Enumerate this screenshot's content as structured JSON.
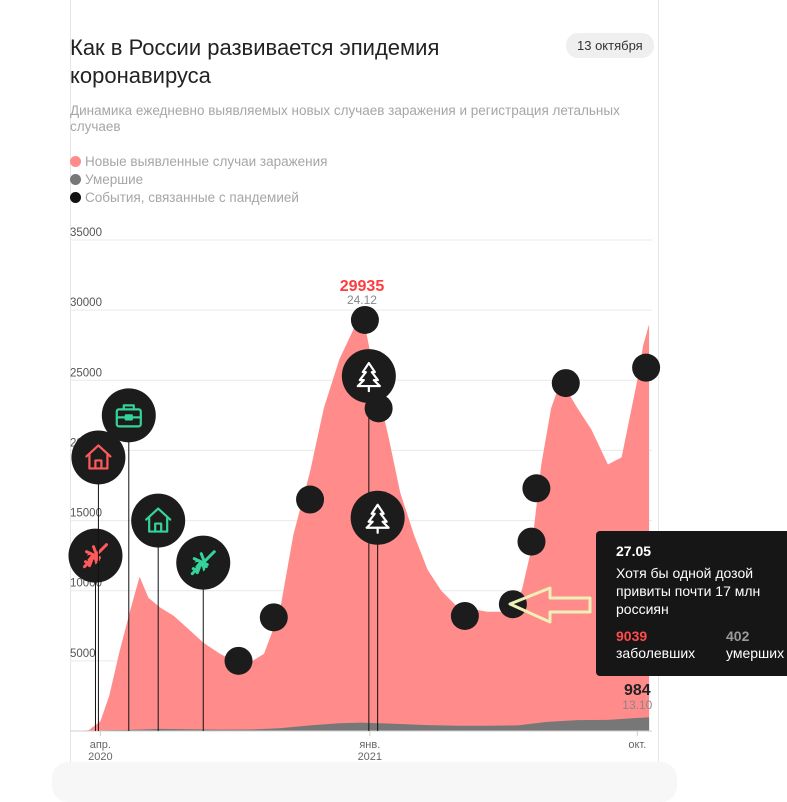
{
  "header": {
    "title": "Как в России развивается эпидемия коронавируса",
    "date_badge": "13 октября",
    "subtitle": "Динамика ежедневно выявляемых новых случаев заражения и регистрация летальных случаев"
  },
  "legend": [
    {
      "label": "Новые выявленные случаи заражения",
      "color": "#ff8b8b"
    },
    {
      "label": "Умершие",
      "color": "#777777"
    },
    {
      "label": "События, связанные с пандемией",
      "color": "#111111"
    }
  ],
  "chart_data": {
    "type": "area",
    "y_ticks": [
      5000,
      10000,
      15000,
      20000,
      25000,
      30000,
      35000
    ],
    "y_tick_labels": [
      "5000",
      "10000",
      "15000",
      "20000",
      "25000",
      "30000",
      "35000"
    ],
    "ylim": [
      0,
      35000
    ],
    "grid": true,
    "x_tick_labels": [
      {
        "month": "апр.",
        "year": "2020"
      },
      {
        "month": "янв.",
        "year": "2021"
      },
      {
        "month": "окт.",
        "year": ""
      }
    ],
    "series": [
      {
        "name": "Новые выявленные случаи заражения",
        "color": "#ff8b8b",
        "points": [
          [
            "2020-03-01",
            0
          ],
          [
            "2020-03-20",
            50
          ],
          [
            "2020-04-01",
            700
          ],
          [
            "2020-04-10",
            2500
          ],
          [
            "2020-04-20",
            5500
          ],
          [
            "2020-05-01",
            8500
          ],
          [
            "2020-05-11",
            11000
          ],
          [
            "2020-05-20",
            9500
          ],
          [
            "2020-06-01",
            8800
          ],
          [
            "2020-06-15",
            8200
          ],
          [
            "2020-07-01",
            7200
          ],
          [
            "2020-07-15",
            6300
          ],
          [
            "2020-08-01",
            5500
          ],
          [
            "2020-08-15",
            5000
          ],
          [
            "2020-09-01",
            4900
          ],
          [
            "2020-09-15",
            5500
          ],
          [
            "2020-10-01",
            8500
          ],
          [
            "2020-10-15",
            14000
          ],
          [
            "2020-11-01",
            18500
          ],
          [
            "2020-11-15",
            23000
          ],
          [
            "2020-12-01",
            26500
          ],
          [
            "2020-12-24",
            29935
          ],
          [
            "2021-01-10",
            24000
          ],
          [
            "2021-01-20",
            21000
          ],
          [
            "2021-02-01",
            17000
          ],
          [
            "2021-02-15",
            14000
          ],
          [
            "2021-03-01",
            11500
          ],
          [
            "2021-03-15",
            10000
          ],
          [
            "2021-04-01",
            8800
          ],
          [
            "2021-04-15",
            8700
          ],
          [
            "2021-05-01",
            8500
          ],
          [
            "2021-05-15",
            8500
          ],
          [
            "2021-05-27",
            9039
          ],
          [
            "2021-06-05",
            10000
          ],
          [
            "2021-06-15",
            13000
          ],
          [
            "2021-06-25",
            19000
          ],
          [
            "2021-07-05",
            23000
          ],
          [
            "2021-07-15",
            25000
          ],
          [
            "2021-08-01",
            23000
          ],
          [
            "2021-08-15",
            21500
          ],
          [
            "2021-09-01",
            19000
          ],
          [
            "2021-09-15",
            19500
          ],
          [
            "2021-10-01",
            25000
          ],
          [
            "2021-10-07",
            27500
          ],
          [
            "2021-10-13",
            29000
          ]
        ]
      },
      {
        "name": "Умершие",
        "color": "#777777",
        "points": [
          [
            "2020-03-01",
            0
          ],
          [
            "2020-05-01",
            80
          ],
          [
            "2020-06-01",
            150
          ],
          [
            "2020-07-01",
            120
          ],
          [
            "2020-08-01",
            100
          ],
          [
            "2020-09-01",
            110
          ],
          [
            "2020-10-01",
            200
          ],
          [
            "2020-11-01",
            400
          ],
          [
            "2020-12-01",
            550
          ],
          [
            "2020-12-24",
            600
          ],
          [
            "2021-02-01",
            500
          ],
          [
            "2021-03-01",
            420
          ],
          [
            "2021-04-01",
            380
          ],
          [
            "2021-05-01",
            380
          ],
          [
            "2021-06-01",
            400
          ],
          [
            "2021-07-01",
            650
          ],
          [
            "2021-08-01",
            780
          ],
          [
            "2021-09-01",
            790
          ],
          [
            "2021-10-13",
            984
          ]
        ]
      }
    ],
    "annotations": {
      "peak": {
        "value": "29935",
        "date": "24.12"
      },
      "latest": {
        "value": "984",
        "date": "13.10"
      }
    },
    "events": [
      {
        "date": "2020-03-27",
        "y": 12500,
        "icon": "plane-icon",
        "color": "#ff5a5a",
        "stem": true
      },
      {
        "date": "2020-03-30",
        "y": 19500,
        "icon": "house-icon",
        "color": "#ff5a5a",
        "stem": true
      },
      {
        "date": "2020-04-30",
        "y": 22500,
        "icon": "briefcase-icon",
        "color": "#35d399",
        "stem": true
      },
      {
        "date": "2020-05-30",
        "y": 15000,
        "icon": "house-icon",
        "color": "#35d399",
        "stem": true
      },
      {
        "date": "2020-07-15",
        "y": 12000,
        "icon": "plane-icon",
        "color": "#35d399",
        "stem": true
      },
      {
        "date": "2020-08-20",
        "y": 5000,
        "icon": "",
        "color": "",
        "stem": false
      },
      {
        "date": "2020-09-25",
        "y": 8100,
        "icon": "",
        "color": "",
        "stem": false
      },
      {
        "date": "2020-11-01",
        "y": 16500,
        "icon": "",
        "color": "",
        "stem": false
      },
      {
        "date": "2020-12-27",
        "y": 29300,
        "icon": "",
        "color": "",
        "stem": false
      },
      {
        "date": "2020-12-31",
        "y": 25300,
        "icon": "tree-icon",
        "color": "#ffffff",
        "stem": true
      },
      {
        "date": "2021-01-10",
        "y": 23000,
        "icon": "",
        "color": "",
        "stem": false
      },
      {
        "date": "2021-01-09",
        "y": 15200,
        "icon": "tree-icon",
        "color": "#ffffff",
        "stem": true
      },
      {
        "date": "2021-04-08",
        "y": 8200,
        "icon": "",
        "color": "",
        "stem": false
      },
      {
        "date": "2021-05-27",
        "y": 9039,
        "icon": "",
        "color": "",
        "stem": false
      },
      {
        "date": "2021-06-15",
        "y": 13500,
        "icon": "",
        "color": "",
        "stem": false
      },
      {
        "date": "2021-06-20",
        "y": 17300,
        "icon": "",
        "color": "",
        "stem": false
      },
      {
        "date": "2021-07-20",
        "y": 24800,
        "icon": "",
        "color": "",
        "stem": false
      },
      {
        "date": "2021-10-10",
        "y": 25900,
        "icon": "",
        "color": "",
        "stem": false
      }
    ]
  },
  "tooltip": {
    "date": "27.05",
    "text": "Хотя бы одной дозой привиты почти 17 млн россиян",
    "cases_value": "9039",
    "cases_label": "заболевших",
    "deaths_value": "402",
    "deaths_label": "умерших"
  }
}
